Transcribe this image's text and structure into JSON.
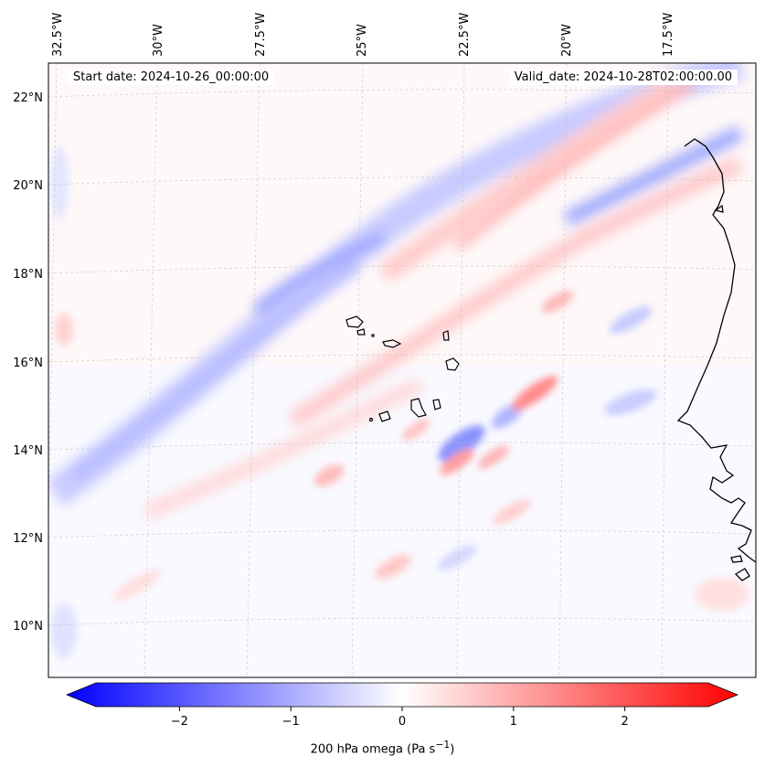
{
  "map": {
    "start_date": "Start date: 2024-10-26_00:00:00",
    "valid_date": "Valid_date: 2024-10-28T02:00:00.00",
    "lon_labels": [
      "32.5°W",
      "30°W",
      "27.5°W",
      "25°W",
      "22.5°W",
      "20°W",
      "17.5°W"
    ],
    "lat_labels": [
      "22°N",
      "20°N",
      "18°N",
      "16°N",
      "14°N",
      "12°N",
      "10°N"
    ],
    "extent": {
      "lon": [
        -33.0,
        -16.0
      ],
      "lat": [
        8.9,
        22.8
      ]
    },
    "gridlines": true,
    "colormap": "bwr",
    "colors": {
      "negative": "#0000ff",
      "zero": "#ffffff",
      "positive": "#ff0000"
    }
  },
  "colorbar": {
    "label_prefix": "200 hPa omega (Pa s",
    "label_exp": "−1",
    "label_suffix": ")",
    "ticks": [
      "−2",
      "−1",
      "0",
      "1",
      "2"
    ],
    "range": [
      -2.75,
      2.75
    ],
    "extend": "both"
  }
}
